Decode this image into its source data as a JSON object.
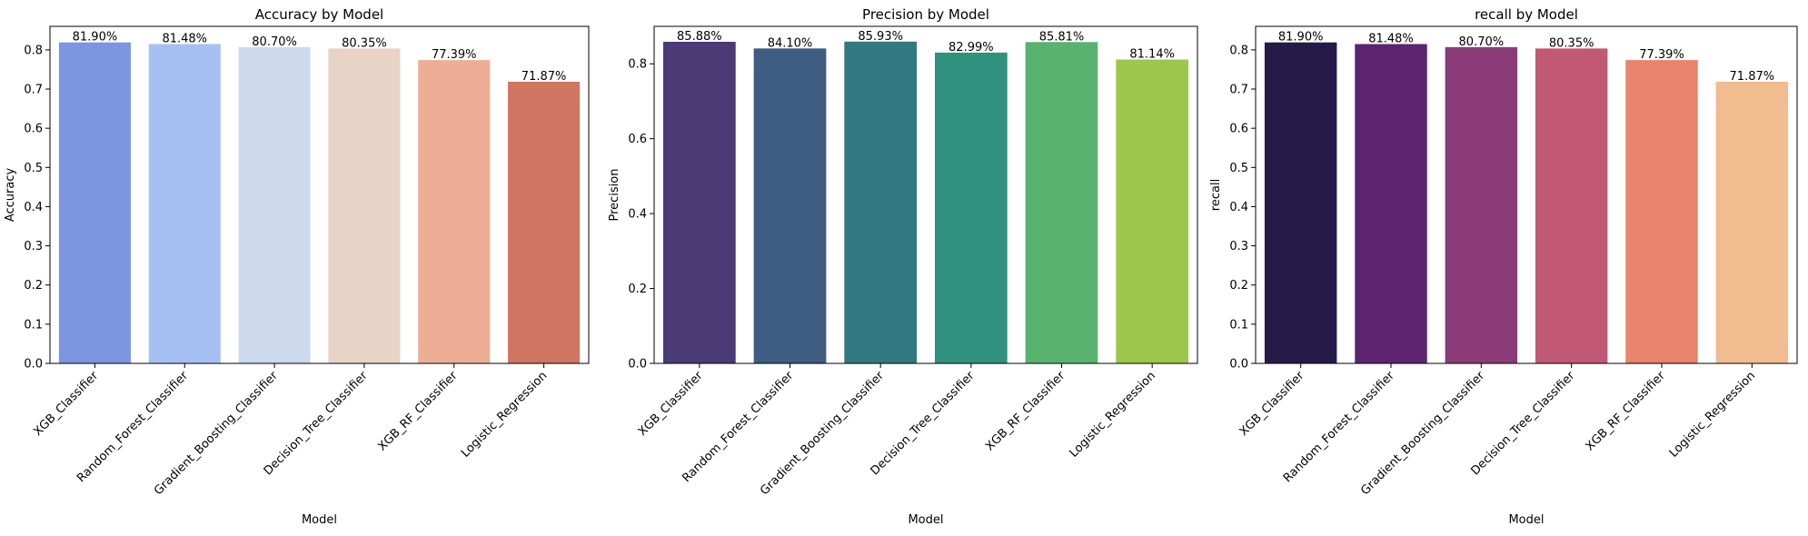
{
  "chart_data": [
    {
      "type": "bar",
      "title": "Accuracy by Model",
      "xlabel": "Model",
      "ylabel": "Accuracy",
      "categories": [
        "XGB_Classifier",
        "Random_Forest_Classifier",
        "Gradient_Boosting_Classifier",
        "Decision_Tree_Classifier",
        "XGB_RF_Classifier",
        "Logistic_Regression"
      ],
      "values": [
        0.819,
        0.8148,
        0.807,
        0.8035,
        0.7739,
        0.7187
      ],
      "data_labels": [
        "81.90%",
        "81.48%",
        "80.70%",
        "80.35%",
        "77.39%",
        "71.87%"
      ],
      "colors": [
        "#7b95e0",
        "#a6c0f4",
        "#cdd9ec",
        "#e8d3c7",
        "#ecaf96",
        "#d07562"
      ],
      "ylim": [
        0,
        0.86
      ],
      "yticks": [
        0.0,
        0.1,
        0.2,
        0.3,
        0.4,
        0.5,
        0.6,
        0.7,
        0.8
      ],
      "ytick_labels": [
        "0.0",
        "0.1",
        "0.2",
        "0.3",
        "0.4",
        "0.5",
        "0.6",
        "0.7",
        "0.8"
      ],
      "grid": false,
      "legend": "none"
    },
    {
      "type": "bar",
      "title": "Precision by Model",
      "xlabel": "Model",
      "ylabel": "Precision",
      "categories": [
        "XGB_Classifier",
        "Random_Forest_Classifier",
        "Gradient_Boosting_Classifier",
        "Decision_Tree_Classifier",
        "XGB_RF_Classifier",
        "Logistic_Regression"
      ],
      "values": [
        0.8588,
        0.841,
        0.8593,
        0.8299,
        0.8581,
        0.8114
      ],
      "data_labels": [
        "85.88%",
        "84.10%",
        "85.93%",
        "82.99%",
        "85.81%",
        "81.14%"
      ],
      "colors": [
        "#4a3b76",
        "#3f5d82",
        "#337780",
        "#30917f",
        "#5ab26f",
        "#9bc74d"
      ],
      "ylim": [
        0,
        0.9
      ],
      "yticks": [
        0.0,
        0.2,
        0.4,
        0.6,
        0.8
      ],
      "ytick_labels": [
        "0.0",
        "0.2",
        "0.4",
        "0.6",
        "0.8"
      ],
      "grid": false,
      "legend": "none"
    },
    {
      "type": "bar",
      "title": "recall by Model",
      "xlabel": "Model",
      "ylabel": "recall",
      "categories": [
        "XGB_Classifier",
        "Random_Forest_Classifier",
        "Gradient_Boosting_Classifier",
        "Decision_Tree_Classifier",
        "XGB_RF_Classifier",
        "Logistic_Regression"
      ],
      "values": [
        0.819,
        0.8148,
        0.807,
        0.8035,
        0.7739,
        0.7187
      ],
      "data_labels": [
        "81.90%",
        "81.48%",
        "80.70%",
        "80.35%",
        "77.39%",
        "71.87%"
      ],
      "colors": [
        "#251a48",
        "#5c236f",
        "#8b3b78",
        "#c05876",
        "#e8836d",
        "#f1bc8f"
      ],
      "ylim": [
        0,
        0.86
      ],
      "yticks": [
        0.0,
        0.1,
        0.2,
        0.3,
        0.4,
        0.5,
        0.6,
        0.7,
        0.8
      ],
      "ytick_labels": [
        "0.0",
        "0.1",
        "0.2",
        "0.3",
        "0.4",
        "0.5",
        "0.6",
        "0.7",
        "0.8"
      ],
      "grid": false,
      "legend": "none"
    }
  ]
}
